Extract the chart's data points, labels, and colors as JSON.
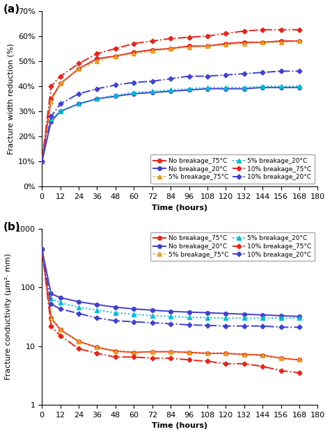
{
  "time": [
    0,
    6,
    12,
    24,
    36,
    48,
    60,
    72,
    84,
    96,
    108,
    120,
    132,
    144,
    156,
    168
  ],
  "panel_a": {
    "no_break_75": [
      10,
      35,
      41,
      47,
      51,
      52,
      53.5,
      54.5,
      55,
      56,
      56,
      57,
      57.5,
      57.5,
      58,
      58
    ],
    "five_break_75": [
      10,
      34,
      41,
      47,
      50,
      52,
      53,
      54,
      55,
      55.5,
      56,
      56.5,
      57,
      57.5,
      57.5,
      58
    ],
    "ten_break_75": [
      10,
      40,
      44,
      49,
      53,
      55,
      57,
      58,
      59,
      59.5,
      60,
      61,
      62,
      62.5,
      62.5,
      62.5
    ],
    "no_break_20": [
      10,
      26,
      30,
      33,
      35,
      36,
      37,
      37.5,
      38,
      38.5,
      39,
      39,
      39,
      39.5,
      39.5,
      39.5
    ],
    "five_break_20": [
      10,
      27,
      30,
      33,
      35,
      36.5,
      37.5,
      38,
      38.5,
      39,
      39.5,
      39.5,
      39.5,
      40,
      40,
      40
    ],
    "ten_break_20": [
      10,
      28,
      33,
      37,
      39,
      40.5,
      41.5,
      42,
      43,
      44,
      44,
      44.5,
      45,
      45.5,
      46,
      46
    ]
  },
  "panel_b": {
    "no_break_75": [
      450,
      30,
      19,
      12,
      9.5,
      8.2,
      7.8,
      8.0,
      8.0,
      7.8,
      7.5,
      7.5,
      7.2,
      7.0,
      6.2,
      5.8
    ],
    "five_break_75": [
      450,
      30,
      19,
      12,
      9.5,
      8.2,
      7.8,
      8.0,
      8.0,
      7.8,
      7.5,
      7.5,
      7.2,
      7.0,
      6.2,
      5.8
    ],
    "ten_break_75": [
      450,
      22,
      15,
      9,
      7.5,
      6.5,
      6.5,
      6.2,
      6.2,
      5.8,
      5.5,
      5.0,
      5.0,
      4.5,
      3.8,
      3.5
    ],
    "no_break_20": [
      450,
      78,
      67,
      57,
      51,
      46,
      43,
      41,
      39,
      38,
      37,
      36,
      35,
      34,
      33,
      32
    ],
    "five_break_20": [
      450,
      65,
      55,
      46,
      41,
      37,
      35,
      33,
      32,
      31,
      30.5,
      30,
      30,
      30,
      30,
      30
    ],
    "ten_break_20": [
      450,
      52,
      43,
      36,
      30,
      27,
      26,
      25,
      24,
      23,
      22.5,
      22,
      22,
      22,
      21,
      21
    ]
  },
  "colors": {
    "no_75C": "#e8231a",
    "no_20C": "#4040d0",
    "five_75C": "#e8a020",
    "five_20C": "#00bcd4",
    "ten_75C": "#e8231a",
    "ten_20C": "#4040d0"
  },
  "legend_a": [
    "No breakage_75°C",
    "No breakage_20°C",
    "5% breakage_75°C",
    "5% breakage_20°C",
    "10% breakage_75°C",
    "10% breakage_20°C"
  ],
  "xlabel": "Time (hours)",
  "ylabel_a": "Fracture width reduction (%)",
  "ylabel_b": "Fracture conductivity (μm²· mm)",
  "panel_labels": [
    "(a)",
    "(b)"
  ],
  "xlim": [
    0,
    175
  ],
  "xticks": [
    0,
    12,
    24,
    36,
    48,
    60,
    72,
    84,
    96,
    108,
    120,
    132,
    144,
    156,
    168,
    180
  ],
  "ylim_a": [
    0,
    70
  ],
  "yticks_a": [
    0,
    10,
    20,
    30,
    40,
    50,
    60,
    70
  ],
  "bg_color": "#ffffff"
}
